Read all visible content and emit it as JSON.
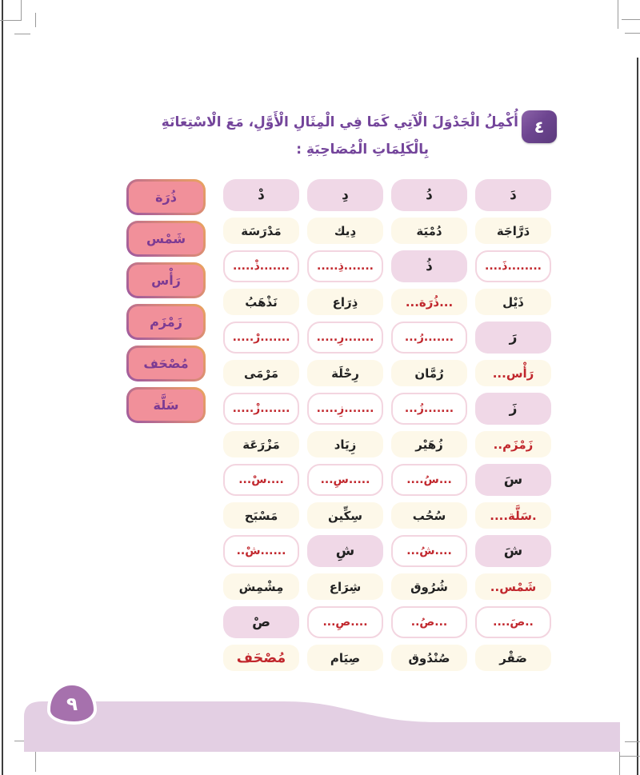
{
  "page": {
    "number": "٩",
    "exercise_number": "٤",
    "instruction_line1": "أُكْمِلُ الْجَدْوَلَ الْآتِي كَمَا فِي الْمِثَالِ الْأَوَّلِ، مَعَ الْاسْتِعَانَةِ",
    "instruction_line2": "بِالْكَلِمَاتِ الْمُصَاحِبَةِ :"
  },
  "word_bank": [
    "ذُرَة",
    "شَمْس",
    "رَأْس",
    "زَمْزَم",
    "مُصْحَف",
    "سَلَّة"
  ],
  "table": {
    "note": "cells listed in right-to-left visual order; style: pink=given letter cell, cream=word cell, blank=dotted answer cell; red=true means answer written in red",
    "rows": [
      {
        "type": "letters",
        "cells": [
          {
            "text": "دَ",
            "style": "pink",
            "red": false
          },
          {
            "text": "دُ",
            "style": "pink",
            "red": false
          },
          {
            "text": "دِ",
            "style": "pink",
            "red": false
          },
          {
            "text": "دْ",
            "style": "pink",
            "red": false
          }
        ]
      },
      {
        "type": "words",
        "cells": [
          {
            "text": "دَرَّاجَة",
            "style": "cream",
            "red": false
          },
          {
            "text": "دُمْيَة",
            "style": "cream",
            "red": false
          },
          {
            "text": "دِيك",
            "style": "cream",
            "red": false
          },
          {
            "text": "مَدْرَسَة",
            "style": "cream",
            "red": false
          }
        ]
      },
      {
        "type": "letters",
        "cells": [
          {
            "text": "........ذَ....",
            "style": "blank",
            "red": true
          },
          {
            "text": "ذُ",
            "style": "pink",
            "red": false
          },
          {
            "text": ".......ذِ.....",
            "style": "blank",
            "red": true
          },
          {
            "text": ".......ذْ.....",
            "style": "blank",
            "red": true
          }
        ]
      },
      {
        "type": "words",
        "cells": [
          {
            "text": "ذَيْل",
            "style": "cream",
            "red": false
          },
          {
            "text": "...ذُرَة...",
            "style": "cream",
            "red": true
          },
          {
            "text": "ذِرَاع",
            "style": "cream",
            "red": false
          },
          {
            "text": "نَذْهَبُ",
            "style": "cream",
            "red": false
          }
        ]
      },
      {
        "type": "letters",
        "cells": [
          {
            "text": "رَ",
            "style": "pink",
            "red": false
          },
          {
            "text": ".......رُ...",
            "style": "blank",
            "red": true
          },
          {
            "text": ".......رِ.....",
            "style": "blank",
            "red": true
          },
          {
            "text": ".......رْ.....",
            "style": "blank",
            "red": true
          }
        ]
      },
      {
        "type": "words",
        "cells": [
          {
            "text": "رَأْس...",
            "style": "cream",
            "red": true
          },
          {
            "text": "رُمَّان",
            "style": "cream",
            "red": false
          },
          {
            "text": "رِحْلَة",
            "style": "cream",
            "red": false
          },
          {
            "text": "مَرْمَى",
            "style": "cream",
            "red": false
          }
        ]
      },
      {
        "type": "letters",
        "cells": [
          {
            "text": "زَ",
            "style": "pink",
            "red": false
          },
          {
            "text": ".......زُ...",
            "style": "blank",
            "red": true
          },
          {
            "text": ".......زِ.....",
            "style": "blank",
            "red": true
          },
          {
            "text": ".......زْ.....",
            "style": "blank",
            "red": true
          }
        ]
      },
      {
        "type": "words",
        "cells": [
          {
            "text": "زَمْزَم..",
            "style": "cream",
            "red": true
          },
          {
            "text": "زُهَيْر",
            "style": "cream",
            "red": false
          },
          {
            "text": "زِيَاد",
            "style": "cream",
            "red": false
          },
          {
            "text": "مَزْرَعَة",
            "style": "cream",
            "red": false
          }
        ]
      },
      {
        "type": "letters",
        "cells": [
          {
            "text": "سَ",
            "style": "pink",
            "red": false
          },
          {
            "text": "...سُ....",
            "style": "blank",
            "red": true
          },
          {
            "text": ".....سِ...",
            "style": "blank",
            "red": true
          },
          {
            "text": "....سْ...",
            "style": "blank",
            "red": true
          }
        ]
      },
      {
        "type": "words",
        "cells": [
          {
            "text": ".سَلَّة....",
            "style": "cream",
            "red": true
          },
          {
            "text": "سُحُب",
            "style": "cream",
            "red": false
          },
          {
            "text": "سِكِّين",
            "style": "cream",
            "red": false
          },
          {
            "text": "مَسْبَح",
            "style": "cream",
            "red": false
          }
        ]
      },
      {
        "type": "letters",
        "cells": [
          {
            "text": "شَ",
            "style": "pink",
            "red": false
          },
          {
            "text": "....شُ...",
            "style": "blank",
            "red": true
          },
          {
            "text": "شِ",
            "style": "pink",
            "red": false
          },
          {
            "text": "......شْ..",
            "style": "blank",
            "red": true
          }
        ]
      },
      {
        "type": "words",
        "cells": [
          {
            "text": "شَمْس..",
            "style": "cream",
            "red": true
          },
          {
            "text": "شُرُوق",
            "style": "cream",
            "red": false
          },
          {
            "text": "شِرَاع",
            "style": "cream",
            "red": false
          },
          {
            "text": "مِشْمِش",
            "style": "cream",
            "red": false
          }
        ]
      },
      {
        "type": "letters",
        "cells": [
          {
            "text": "..صَ....",
            "style": "blank",
            "red": true
          },
          {
            "text": "...صُ..",
            "style": "blank",
            "red": true
          },
          {
            "text": "....صِ...",
            "style": "blank",
            "red": true
          },
          {
            "text": "صْ",
            "style": "pink",
            "red": false
          }
        ]
      },
      {
        "type": "words",
        "cells": [
          {
            "text": "صَقْر",
            "style": "cream",
            "red": false
          },
          {
            "text": "صُنْدُوق",
            "style": "cream",
            "red": false
          },
          {
            "text": "صِيَام",
            "style": "cream",
            "red": false
          },
          {
            "text": "مُصْحَف",
            "style": "cream",
            "red": true,
            "big": true
          }
        ]
      }
    ]
  },
  "colors": {
    "accent_purple": "#74459b",
    "answer_red": "#c1272d",
    "pink_cell": "#f0d8e7",
    "cream_cell": "#fdf8e9",
    "word_bank_fill": "#f1909a",
    "footer_band": "#e3cfe3",
    "page_blob": "#a671ad"
  }
}
